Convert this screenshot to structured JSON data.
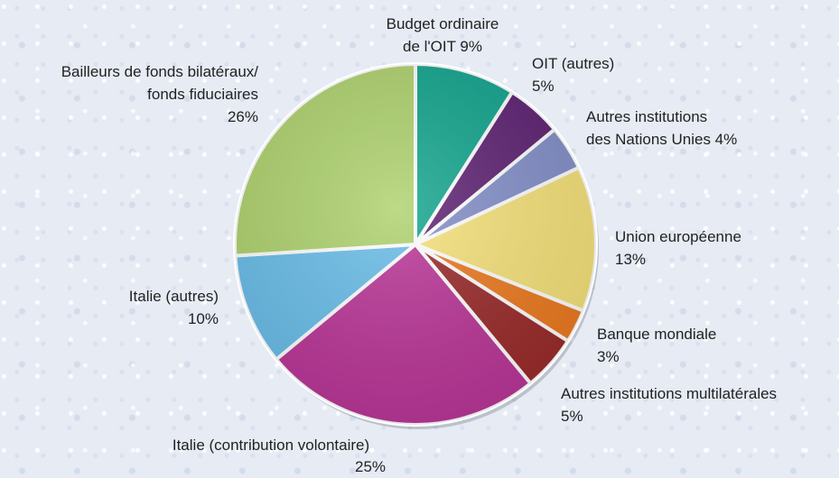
{
  "chart_data": {
    "type": "pie",
    "slices": [
      {
        "label": "Budget ordinaire de l'OIT",
        "value": 9,
        "display": "9%",
        "color": "#12a58e"
      },
      {
        "label": "OIT (autres)",
        "value": 5,
        "display": "5%",
        "color": "#5e2273"
      },
      {
        "label": "Autres institutions des Nations Unies",
        "value": 4,
        "display": "4%",
        "color": "#8490c9"
      },
      {
        "label": "Union européenne",
        "value": 13,
        "display": "13%",
        "color": "#f6e27a"
      },
      {
        "label": "Banque mondiale",
        "value": 3,
        "display": "3%",
        "color": "#ec7a20"
      },
      {
        "label": "Autres institutions multilatérales",
        "value": 5,
        "display": "5%",
        "color": "#9a2a2a"
      },
      {
        "label": "Italie (contribution volontaire)",
        "value": 25,
        "display": "25%",
        "color": "#ba3597"
      },
      {
        "label": "Italie (autres)",
        "value": 10,
        "display": "10%",
        "color": "#69bde9"
      },
      {
        "label": "Bailleurs de fonds bilatéraux/ fonds fiduciaires",
        "value": 26,
        "display": "26%",
        "color": "#aed26d"
      }
    ]
  },
  "labels": {
    "budget": {
      "t1": "Budget ordinaire",
      "t2": "de l'OIT 9%"
    },
    "oit": {
      "t": "OIT (autres)",
      "v": "5%"
    },
    "onu": {
      "t1": "Autres institutions",
      "t2": "des Nations Unies 4%"
    },
    "ue": {
      "t": "Union européenne",
      "v": "13%"
    },
    "bm": {
      "t": "Banque mondiale",
      "v": "3%"
    },
    "multi": {
      "t": "Autres institutions multilatérales",
      "v": "5%"
    },
    "italie_vol": {
      "t": "Italie (contribution volontaire)",
      "v": "25%"
    },
    "italie_autres": {
      "t": "Italie (autres)",
      "v": "10%"
    },
    "bilat": {
      "t1": "Bailleurs de fonds bilatéraux/",
      "t2": "fonds fiduciaires",
      "v": "26%"
    }
  }
}
